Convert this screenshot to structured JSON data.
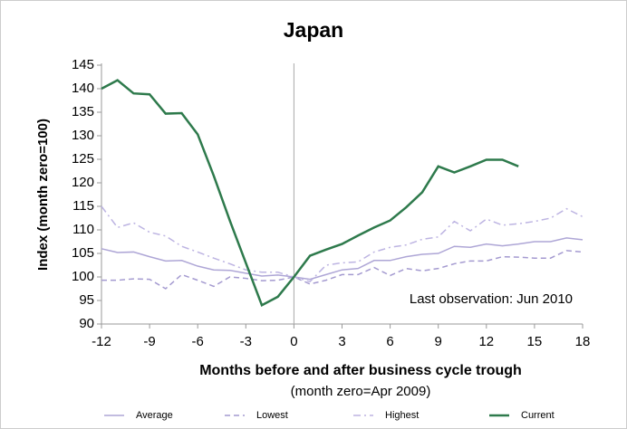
{
  "chart_data": {
    "type": "line",
    "title": "Japan",
    "xlabel": "Months before and after business cycle trough",
    "subtitle": "(month zero=Apr 2009)",
    "ylabel": "Index (month zero=100)",
    "annotation": "Last observation: Jun 2010",
    "x": [
      -12,
      -11,
      -10,
      -9,
      -8,
      -7,
      -6,
      -5,
      -4,
      -3,
      -2,
      -1,
      0,
      1,
      2,
      3,
      4,
      5,
      6,
      7,
      8,
      9,
      10,
      11,
      12,
      13,
      14,
      15,
      16,
      17,
      18
    ],
    "series": [
      {
        "name": "Average",
        "color": "#aea6d6",
        "dash": "solid",
        "width": 1.5,
        "values": [
          106,
          105.2,
          105.3,
          104.3,
          103.4,
          103.5,
          102.3,
          101.5,
          101.4,
          100.8,
          100.2,
          100.4,
          100,
          99.5,
          100.5,
          101.5,
          101.8,
          103.5,
          103.5,
          104.3,
          104.8,
          105,
          106.5,
          106.3,
          107,
          106.6,
          107,
          107.5,
          107.5,
          108.3,
          107.9
        ]
      },
      {
        "name": "Lowest",
        "color": "#a49ad0",
        "dash": "dashed",
        "width": 1.5,
        "values": [
          99.3,
          99.3,
          99.6,
          99.5,
          97.5,
          100.5,
          99.3,
          98,
          100,
          99.7,
          99.2,
          99.3,
          100,
          98.5,
          99.3,
          100.5,
          100.5,
          102,
          100.3,
          101.8,
          101.3,
          101.8,
          102.8,
          103.4,
          103.4,
          104.3,
          104.2,
          104,
          104,
          105.6,
          105.3
        ]
      },
      {
        "name": "Highest",
        "color": "#bdb4e2",
        "dash": "dashdot",
        "width": 1.5,
        "values": [
          115,
          110.5,
          111.5,
          109.5,
          108.7,
          106.5,
          105.3,
          104,
          102.8,
          101.5,
          101,
          101,
          100,
          99,
          102.5,
          103,
          103.2,
          105.3,
          106.3,
          106.8,
          108,
          108.5,
          111.8,
          109.8,
          112.3,
          111,
          111.3,
          111.8,
          112.5,
          114.5,
          112.8
        ]
      },
      {
        "name": "Current",
        "color": "#2e7a4c",
        "dash": "solid",
        "width": 2.5,
        "values": [
          140,
          141.8,
          139,
          138.8,
          134.7,
          134.8,
          130.3,
          121.5,
          112,
          103,
          94,
          95.8,
          100,
          104.5,
          105.8,
          107,
          108.8,
          110.5,
          112,
          114.8,
          118,
          123.5,
          122.2,
          123.5,
          124.9,
          124.9,
          123.5,
          null,
          null,
          null,
          null
        ]
      }
    ],
    "xlim": [
      -12,
      18
    ],
    "xticks": [
      -12,
      -9,
      -6,
      -3,
      0,
      3,
      6,
      9,
      12,
      15,
      18
    ],
    "ylim": [
      90,
      145
    ],
    "yticks": [
      90,
      95,
      100,
      105,
      110,
      115,
      120,
      125,
      130,
      135,
      140,
      145
    ],
    "grid": false
  }
}
